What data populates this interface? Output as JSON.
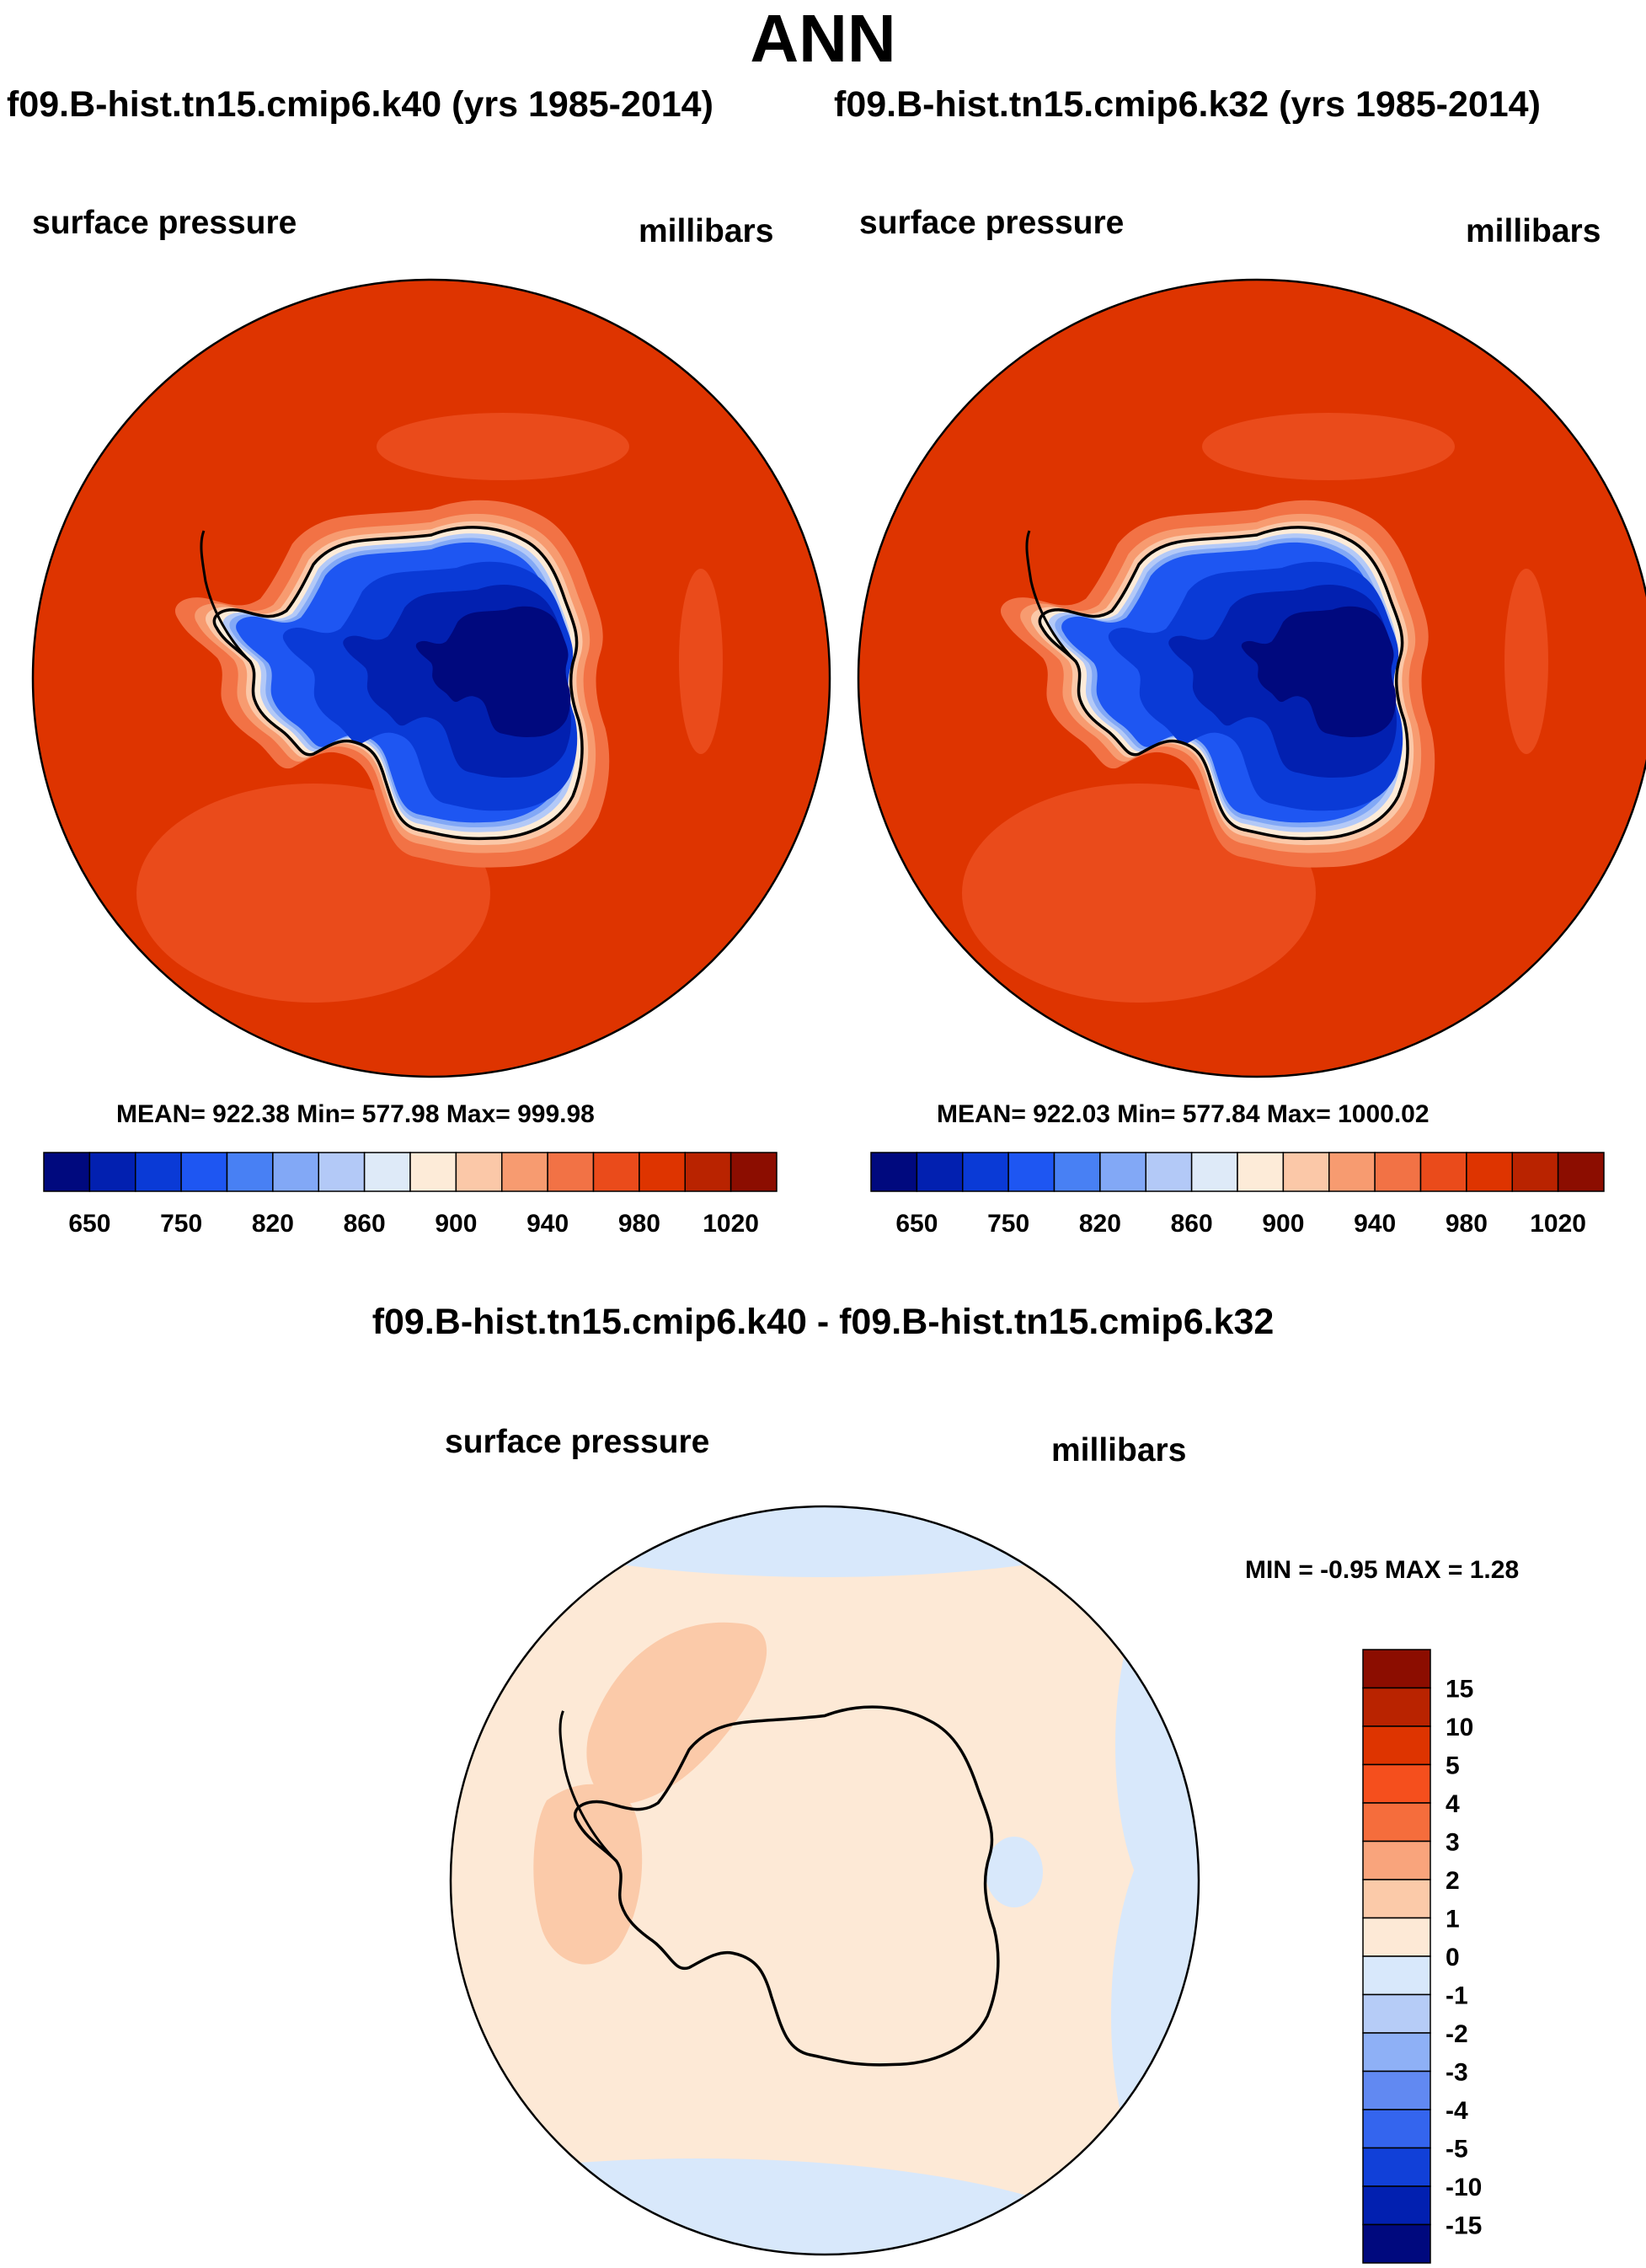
{
  "title": "ANN",
  "panels": [
    {
      "case": "f09.B-hist.tn15.cmip6.k40 (yrs 1985-2014)",
      "field": "surface pressure",
      "units": "millibars",
      "stats": "MEAN= 922.38  Min= 577.98  Max= 999.98"
    },
    {
      "case": "f09.B-hist.tn15.cmip6.k32 (yrs 1985-2014)",
      "field": "surface pressure",
      "units": "millibars",
      "stats": "MEAN= 922.03  Min= 577.84  Max= 1000.02"
    }
  ],
  "difference": {
    "title": "f09.B-hist.tn15.cmip6.k40 - f09.B-hist.tn15.cmip6.k32",
    "field": "surface pressure",
    "units": "millibars",
    "stats": "MIN =  -0.95 MAX =   1.28"
  },
  "chart_data": [
    {
      "type": "heatmap",
      "projection": "south polar stereographic",
      "title": "f09.B-hist.tn15.cmip6.k40 (yrs 1985-2014)",
      "variable": "surface pressure",
      "units": "millibars",
      "mean": 922.38,
      "min": 577.98,
      "max": 999.98,
      "colorbar": {
        "orientation": "horizontal",
        "tick_labels": [
          "650",
          "750",
          "820",
          "860",
          "900",
          "940",
          "980",
          "1020"
        ],
        "colors": [
          "#00097e",
          "#0220b0",
          "#0a3ad6",
          "#1e56f2",
          "#4880f4",
          "#82a8f6",
          "#b3c9f7",
          "#deeaf8",
          "#fdebd8",
          "#fbc8a8",
          "#f79b70",
          "#f27245",
          "#ea4b1b",
          "#de3400",
          "#b92300",
          "#8c0d00"
        ]
      }
    },
    {
      "type": "heatmap",
      "projection": "south polar stereographic",
      "title": "f09.B-hist.tn15.cmip6.k32 (yrs 1985-2014)",
      "variable": "surface pressure",
      "units": "millibars",
      "mean": 922.03,
      "min": 577.84,
      "max": 1000.02,
      "colorbar": {
        "orientation": "horizontal",
        "tick_labels": [
          "650",
          "750",
          "820",
          "860",
          "900",
          "940",
          "980",
          "1020"
        ],
        "colors": [
          "#00097e",
          "#0220b0",
          "#0a3ad6",
          "#1e56f2",
          "#4880f4",
          "#82a8f6",
          "#b3c9f7",
          "#deeaf8",
          "#fdebd8",
          "#fbc8a8",
          "#f79b70",
          "#f27245",
          "#ea4b1b",
          "#de3400",
          "#b92300",
          "#8c0d00"
        ]
      }
    },
    {
      "type": "heatmap",
      "projection": "south polar stereographic",
      "title": "f09.B-hist.tn15.cmip6.k40 - f09.B-hist.tn15.cmip6.k32",
      "variable": "surface pressure",
      "units": "millibars",
      "min": -0.95,
      "max": 1.28,
      "colorbar": {
        "orientation": "vertical",
        "tick_labels": [
          "15",
          "10",
          "5",
          "4",
          "3",
          "2",
          "1",
          "0",
          "-1",
          "-2",
          "-3",
          "-4",
          "-5",
          "-10",
          "-15"
        ],
        "colors": [
          "#8c0d00",
          "#b92300",
          "#de3400",
          "#f54f1d",
          "#f56d3c",
          "#f9a47c",
          "#fbcaa9",
          "#fde9d6",
          "#d8e8fb",
          "#b6ccf7",
          "#8eb0f6",
          "#6189f2",
          "#3465ee",
          "#1140d8",
          "#0220b0",
          "#00097e"
        ]
      }
    }
  ]
}
